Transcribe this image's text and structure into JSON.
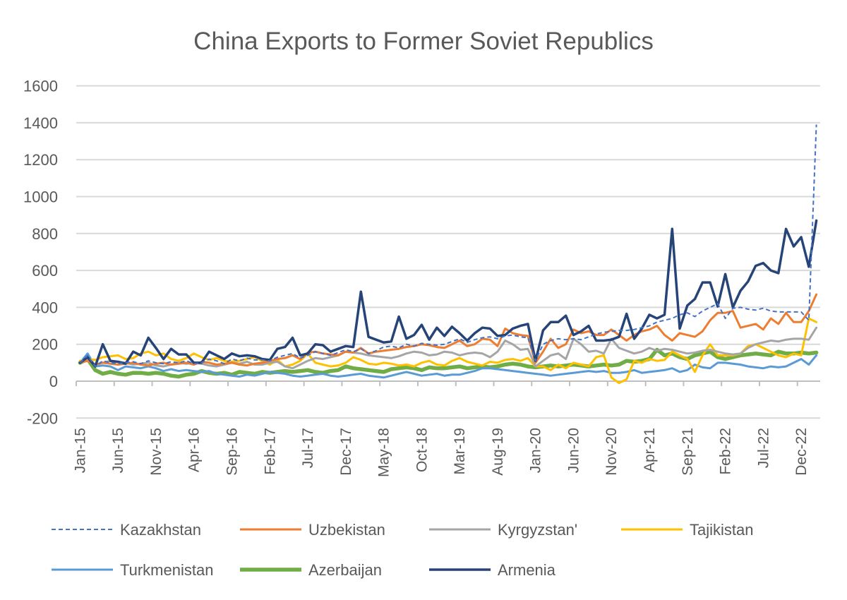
{
  "chart_data": {
    "type": "line",
    "title": "China Exports to Former Soviet Republics",
    "xlabel": "",
    "ylabel": "",
    "ylim": [
      -200,
      1600
    ],
    "yticks": [
      "-200",
      "0",
      "200",
      "400",
      "600",
      "800",
      "1000",
      "1200",
      "1400",
      "1600"
    ],
    "ytick_values": [
      -200,
      0,
      200,
      400,
      600,
      800,
      1000,
      1200,
      1400,
      1600
    ],
    "x_start": "Jan-15",
    "n_points": 98,
    "xtick_labels": [
      "Jan-15",
      "Jun-15",
      "Nov-15",
      "Apr-16",
      "Sep-16",
      "Feb-17",
      "Jul-17",
      "Dec-17",
      "May-18",
      "Oct-18",
      "Mar-19",
      "Aug-19",
      "Jan-20",
      "Jun-20",
      "Nov-20",
      "Apr-21",
      "Sep-21",
      "Feb-22",
      "Jul-22",
      "Dec-22"
    ],
    "xtick_every": 5,
    "grid": true,
    "legend_position": "bottom",
    "series": [
      {
        "name": "Kazakhstan",
        "color": "#4472C4",
        "dashed": true,
        "values": [
          100,
          140,
          80,
          110,
          100,
          95,
          100,
          105,
          95,
          110,
          100,
          95,
          105,
          100,
          110,
          95,
          100,
          120,
          110,
          95,
          120,
          110,
          125,
          115,
          115,
          110,
          130,
          140,
          150,
          125,
          140,
          160,
          150,
          140,
          155,
          170,
          160,
          175,
          150,
          165,
          185,
          190,
          180,
          200,
          190,
          205,
          200,
          195,
          200,
          215,
          230,
          210,
          225,
          235,
          240,
          230,
          245,
          250,
          240,
          235,
          110,
          200,
          220,
          230,
          225,
          230,
          225,
          240,
          255,
          265,
          270,
          275,
          275,
          280,
          290,
          300,
          320,
          330,
          340,
          360,
          370,
          350,
          380,
          400,
          420,
          340,
          395,
          400,
          390,
          385,
          395,
          380,
          375,
          375,
          375,
          375,
          330,
          1390
        ]
      },
      {
        "name": "Uzbekistan",
        "color": "#ED7D31",
        "values": [
          100,
          110,
          90,
          100,
          95,
          90,
          95,
          100,
          90,
          85,
          95,
          100,
          90,
          95,
          100,
          90,
          105,
          100,
          90,
          95,
          100,
          90,
          85,
          95,
          100,
          110,
          120,
          125,
          140,
          120,
          155,
          160,
          150,
          145,
          140,
          160,
          155,
          180,
          150,
          160,
          165,
          170,
          175,
          185,
          190,
          200,
          195,
          185,
          180,
          200,
          220,
          190,
          200,
          230,
          225,
          190,
          285,
          260,
          250,
          245,
          100,
          160,
          230,
          180,
          200,
          280,
          260,
          270,
          250,
          250,
          280,
          250,
          220,
          250,
          270,
          280,
          300,
          250,
          220,
          260,
          250,
          240,
          270,
          330,
          370,
          370,
          380,
          290,
          300,
          310,
          280,
          340,
          310,
          370,
          320,
          320,
          380,
          470
        ]
      },
      {
        "name": "Kyrgyzstan'",
        "color": "#A5A5A5",
        "values": [
          100,
          120,
          90,
          100,
          110,
          105,
          100,
          90,
          95,
          100,
          85,
          80,
          90,
          100,
          95,
          100,
          95,
          85,
          80,
          90,
          100,
          95,
          105,
          90,
          90,
          100,
          105,
          80,
          70,
          90,
          110,
          125,
          120,
          130,
          140,
          160,
          155,
          150,
          140,
          135,
          130,
          125,
          135,
          150,
          160,
          155,
          140,
          145,
          160,
          155,
          140,
          150,
          155,
          150,
          130,
          160,
          220,
          200,
          170,
          175,
          80,
          110,
          140,
          150,
          120,
          230,
          200,
          160,
          165,
          150,
          230,
          180,
          165,
          150,
          160,
          180,
          165,
          175,
          170,
          160,
          150,
          155,
          165,
          170,
          160,
          150,
          145,
          150,
          180,
          200,
          210,
          220,
          215,
          225,
          230,
          230,
          225,
          290
        ]
      },
      {
        "name": "Tajikistan",
        "color": "#FFC000",
        "values": [
          110,
          120,
          115,
          130,
          135,
          140,
          120,
          125,
          150,
          160,
          140,
          150,
          120,
          110,
          125,
          150,
          130,
          115,
          125,
          110,
          105,
          110,
          120,
          130,
          110,
          90,
          115,
          80,
          90,
          110,
          150,
          100,
          90,
          80,
          85,
          100,
          130,
          115,
          95,
          90,
          100,
          95,
          85,
          90,
          80,
          100,
          110,
          90,
          85,
          110,
          125,
          105,
          95,
          85,
          105,
          100,
          115,
          120,
          110,
          125,
          80,
          80,
          60,
          90,
          70,
          100,
          90,
          80,
          130,
          140,
          20,
          -10,
          10,
          110,
          100,
          120,
          110,
          115,
          160,
          140,
          120,
          50,
          140,
          200,
          140,
          140,
          140,
          150,
          190,
          200,
          180,
          160,
          140,
          130,
          150,
          140,
          340,
          320
        ]
      },
      {
        "name": "Turkmenistan",
        "color": "#5B9BD5",
        "values": [
          100,
          150,
          80,
          85,
          80,
          60,
          80,
          75,
          70,
          80,
          70,
          55,
          65,
          55,
          60,
          55,
          50,
          55,
          40,
          35,
          30,
          25,
          35,
          30,
          40,
          50,
          45,
          40,
          30,
          25,
          30,
          35,
          40,
          30,
          25,
          30,
          35,
          40,
          30,
          25,
          20,
          30,
          40,
          50,
          40,
          30,
          35,
          40,
          30,
          35,
          35,
          45,
          55,
          70,
          70,
          65,
          60,
          55,
          50,
          45,
          40,
          35,
          30,
          35,
          40,
          45,
          50,
          55,
          50,
          55,
          45,
          45,
          50,
          60,
          45,
          50,
          55,
          60,
          70,
          50,
          60,
          90,
          75,
          70,
          100,
          100,
          95,
          90,
          80,
          75,
          70,
          80,
          75,
          80,
          100,
          120,
          90,
          140
        ]
      },
      {
        "name": "Azerbaijan",
        "color": "#70AD47",
        "values": [
          100,
          120,
          60,
          40,
          50,
          40,
          35,
          45,
          45,
          40,
          45,
          40,
          30,
          25,
          35,
          40,
          55,
          45,
          40,
          45,
          35,
          50,
          45,
          40,
          50,
          45,
          50,
          55,
          50,
          55,
          60,
          50,
          45,
          55,
          60,
          80,
          70,
          65,
          60,
          55,
          50,
          65,
          70,
          75,
          70,
          60,
          75,
          70,
          70,
          75,
          80,
          70,
          75,
          80,
          75,
          80,
          90,
          95,
          90,
          80,
          75,
          80,
          85,
          80,
          85,
          90,
          85,
          80,
          85,
          90,
          85,
          90,
          110,
          105,
          110,
          120,
          170,
          140,
          150,
          130,
          120,
          140,
          150,
          160,
          130,
          120,
          130,
          140,
          145,
          150,
          145,
          140,
          160,
          150,
          150,
          155,
          150,
          155
        ]
      },
      {
        "name": "Armenia",
        "color": "#264478",
        "values": [
          100,
          130,
          80,
          200,
          110,
          105,
          95,
          160,
          140,
          235,
          180,
          120,
          175,
          145,
          145,
          100,
          100,
          160,
          140,
          120,
          150,
          135,
          140,
          135,
          120,
          115,
          175,
          185,
          235,
          140,
          150,
          200,
          195,
          160,
          175,
          190,
          185,
          485,
          240,
          225,
          210,
          215,
          350,
          230,
          250,
          305,
          225,
          290,
          245,
          295,
          260,
          220,
          260,
          290,
          285,
          245,
          250,
          285,
          300,
          310,
          110,
          275,
          320,
          320,
          355,
          250,
          270,
          300,
          220,
          220,
          225,
          240,
          365,
          230,
          285,
          360,
          340,
          360,
          825,
          285,
          410,
          445,
          535,
          535,
          405,
          580,
          400,
          490,
          540,
          625,
          640,
          600,
          585,
          825,
          730,
          780,
          620,
          870
        ]
      }
    ]
  }
}
